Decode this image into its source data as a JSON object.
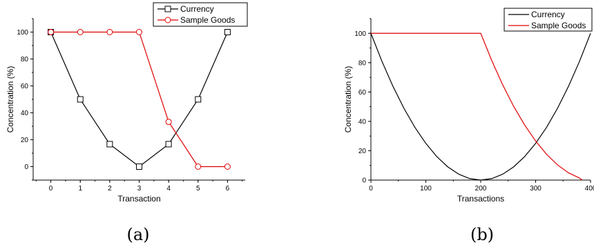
{
  "chart_data": [
    {
      "type": "line",
      "caption": "(a)",
      "xlabel": "Transaction",
      "ylabel": "Concentration (%)",
      "xlim": [
        -0.6,
        6.6
      ],
      "ylim": [
        -10,
        110
      ],
      "x": [
        0,
        1,
        2,
        3,
        4,
        5,
        6
      ],
      "xticks": [
        "0",
        "1",
        "2",
        "3",
        "4",
        "5",
        "6"
      ],
      "yticks": [
        "0",
        "20",
        "40",
        "60",
        "80",
        "100"
      ],
      "legend_position": "top-right",
      "series": [
        {
          "name": "Currency",
          "color": "#000000",
          "marker": "square",
          "values": [
            100,
            50,
            16.7,
            0,
            16.7,
            50,
            100
          ]
        },
        {
          "name": "Sample Goods",
          "color": "#e00000",
          "marker": "circle",
          "values": [
            100,
            100,
            100,
            100,
            33.3,
            0,
            0
          ]
        }
      ]
    },
    {
      "type": "line",
      "caption": "(b)",
      "xlabel": "Transactions",
      "ylabel": "Concentration (%)",
      "xlim": [
        0,
        400
      ],
      "ylim": [
        0,
        110
      ],
      "xticks": [
        "0",
        "100",
        "200",
        "300",
        "400"
      ],
      "yticks": [
        "0",
        "20",
        "40",
        "60",
        "80",
        "100"
      ],
      "legend_position": "top-right",
      "series": [
        {
          "name": "Currency",
          "color": "#000000",
          "marker": "none",
          "x": [
            0,
            20,
            40,
            60,
            80,
            100,
            120,
            140,
            160,
            180,
            200,
            220,
            240,
            260,
            280,
            300,
            320,
            340,
            360,
            380,
            400
          ],
          "values": [
            100,
            81,
            64,
            49,
            36,
            25,
            16,
            9,
            4,
            1,
            0,
            1,
            4,
            9,
            16,
            25,
            36,
            49,
            64,
            81,
            100
          ]
        },
        {
          "name": "Sample Goods",
          "color": "#e00000",
          "marker": "none",
          "x": [
            0,
            100,
            200,
            220,
            240,
            260,
            280,
            300,
            320,
            340,
            360,
            380,
            385
          ],
          "values": [
            100,
            100,
            100,
            81.5,
            64.9,
            50.2,
            37.5,
            26.6,
            17.5,
            10.3,
            4.9,
            1.4,
            0
          ]
        }
      ]
    }
  ]
}
